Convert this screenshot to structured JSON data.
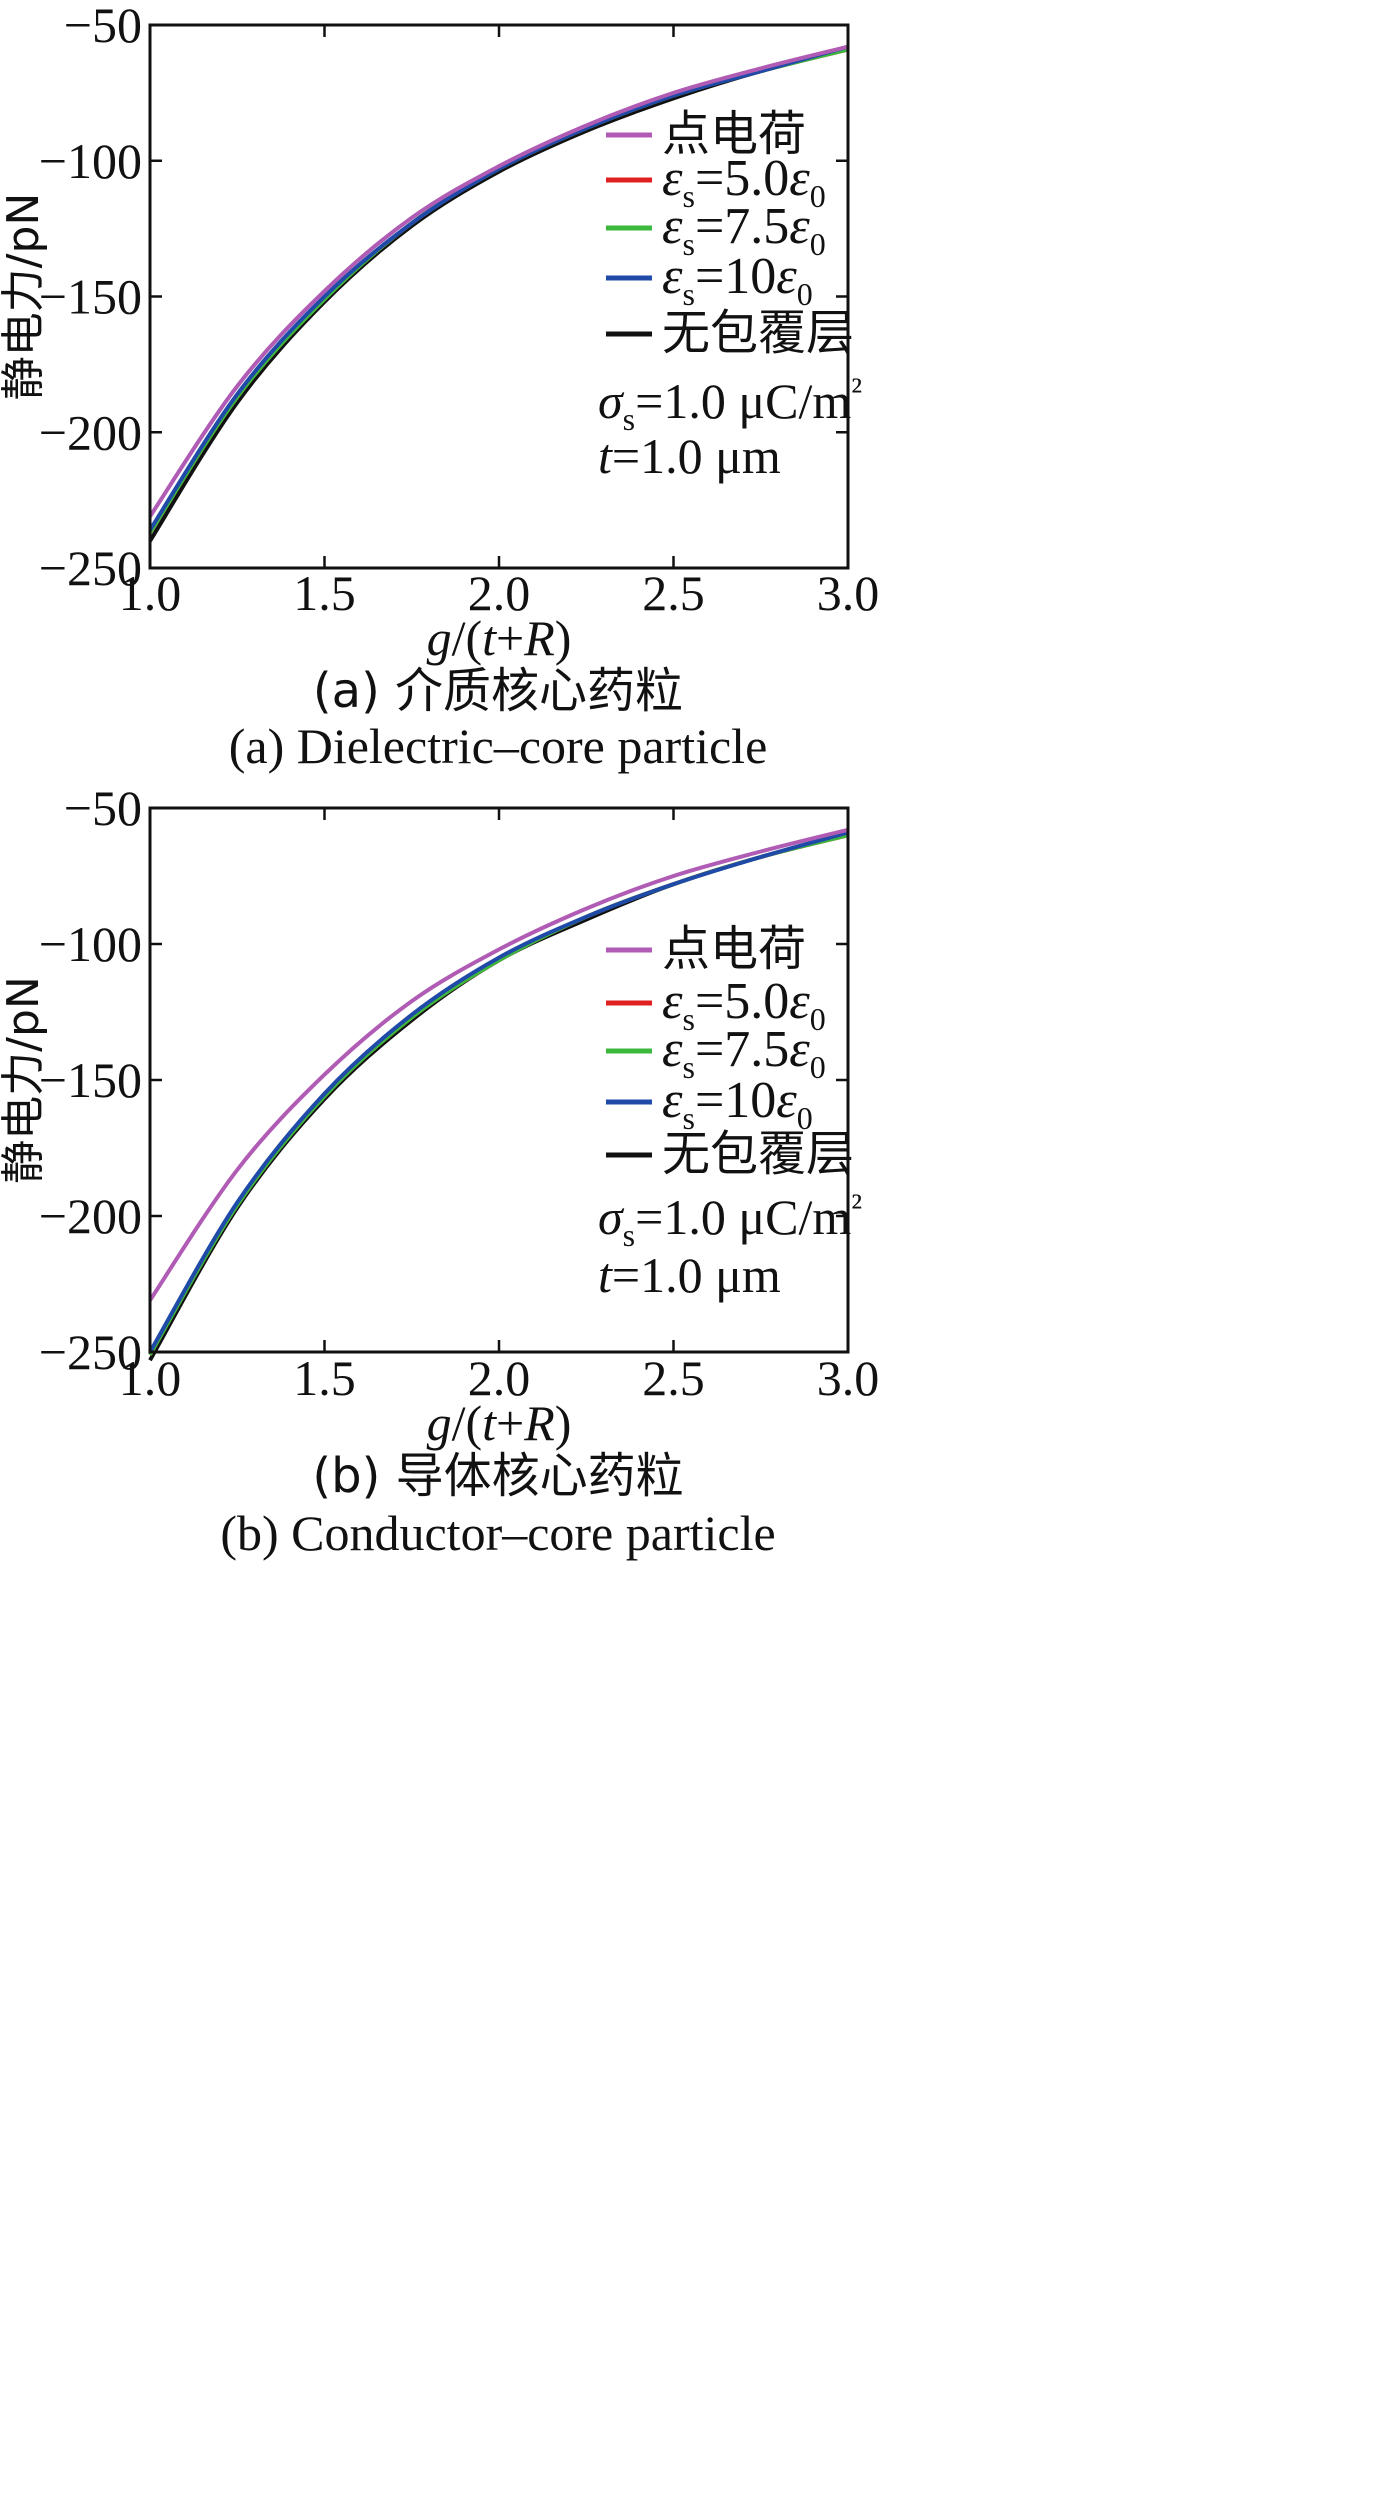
{
  "chart_data": [
    {
      "type": "line",
      "caption_cn": "(a) 介质核心药粒",
      "caption_en": "(a) Dielectric–core particle",
      "xlabel": "g/(t+R)",
      "ylabel": "静电力/pN",
      "xlim": [
        1.0,
        3.0
      ],
      "ylim": [
        -250,
        -50
      ],
      "xticks": [
        "1.0",
        "1.5",
        "2.0",
        "2.5",
        "3.0"
      ],
      "yticks": [
        "−50",
        "−100",
        "−150",
        "−200",
        "−250"
      ],
      "legend_position": "right",
      "annotation_sigma": "σs=1.0 μC/m²",
      "annotation_t": "t=1.0 μm",
      "x": [
        1.0,
        1.25,
        1.5,
        1.75,
        2.0,
        2.25,
        2.5,
        2.75,
        3.0
      ],
      "series": [
        {
          "name": "点电荷",
          "color": "#b05cb4",
          "values": [
            -231,
            -183,
            -148,
            -121,
            -102,
            -87,
            -75,
            -66,
            -58
          ]
        },
        {
          "name": "εs=5.0ε0",
          "color": "#e02020",
          "values": [
            -237,
            -187,
            -151,
            -123,
            -103,
            -88,
            -76,
            -67,
            -59
          ]
        },
        {
          "name": "εs=7.5ε0",
          "color": "#3cb83c",
          "values": [
            -237,
            -187,
            -151,
            -123,
            -103,
            -88,
            -76,
            -67,
            -59
          ]
        },
        {
          "name": "εs=10ε0",
          "color": "#1f4aa8",
          "values": [
            -236,
            -186,
            -150,
            -123,
            -103,
            -88,
            -76,
            -67,
            -58
          ]
        },
        {
          "name": "无包覆层",
          "color": "#111111",
          "values": [
            -240,
            -189,
            -152,
            -124,
            -104,
            -89,
            -77,
            -67,
            -59
          ]
        }
      ]
    },
    {
      "type": "line",
      "caption_cn": "(b) 导体核心药粒",
      "caption_en": "(b) Conductor–core particle",
      "xlabel": "g/(t+R)",
      "ylabel": "静电力/pN",
      "xlim": [
        1.0,
        3.0
      ],
      "ylim": [
        -250,
        -50
      ],
      "xticks": [
        "1.0",
        "1.5",
        "2.0",
        "2.5",
        "3.0"
      ],
      "yticks": [
        "−50",
        "−100",
        "−150",
        "−200",
        "−250"
      ],
      "legend_position": "right",
      "annotation_sigma": "σs=1.0 μC/m²",
      "annotation_t": "t=1.0 μm",
      "x": [
        1.0,
        1.25,
        1.5,
        1.75,
        2.0,
        2.25,
        2.5,
        2.75,
        3.0
      ],
      "series": [
        {
          "name": "点电荷",
          "color": "#b05cb4",
          "values": [
            -231,
            -183,
            -148,
            -121,
            -102,
            -87,
            -75,
            -66,
            -58
          ]
        },
        {
          "name": "εs=5.0ε0",
          "color": "#e02020",
          "values": [
            -251,
            -196,
            -156,
            -127,
            -106,
            -90,
            -78,
            -68,
            -60
          ]
        },
        {
          "name": "εs=7.5ε0",
          "color": "#3cb83c",
          "values": [
            -251,
            -196,
            -156,
            -127,
            -106,
            -90,
            -78,
            -68,
            -60
          ]
        },
        {
          "name": "εs=10ε0",
          "color": "#1f4aa8",
          "values": [
            -250,
            -195,
            -155,
            -126,
            -105,
            -90,
            -78,
            -68,
            -59
          ]
        },
        {
          "name": "无包覆层",
          "color": "#111111",
          "values": [
            -253,
            -197,
            -157,
            -128,
            -106,
            -91,
            -78,
            -68,
            -60
          ]
        }
      ]
    }
  ]
}
